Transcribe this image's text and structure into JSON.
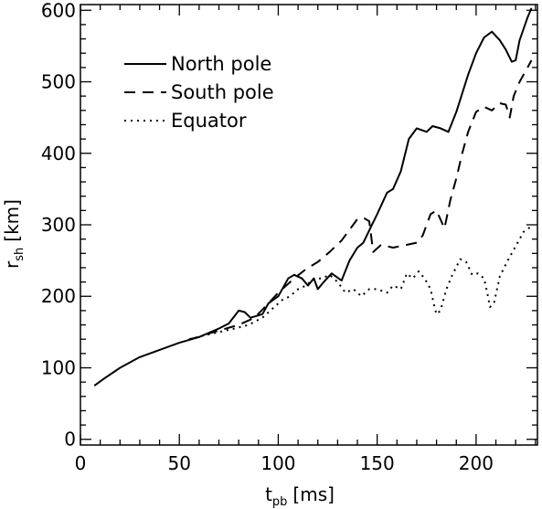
{
  "chart_data": {
    "type": "line",
    "xlabel": {
      "main": "t",
      "sub": "pb",
      "unit": "[ms]"
    },
    "ylabel": {
      "main": "r",
      "sub": "sh",
      "unit": "[km]"
    },
    "xlim": [
      0,
      231
    ],
    "ylim": [
      -8,
      608
    ],
    "xticks": [
      0,
      50,
      100,
      150,
      200
    ],
    "yticks": [
      0,
      100,
      200,
      300,
      400,
      500,
      600
    ],
    "x_minor_step": 10,
    "y_minor_step": 20,
    "legend_position": "top-left",
    "series": [
      {
        "name": "North pole",
        "style": "solid",
        "color": "#000000",
        "points": [
          [
            7,
            75
          ],
          [
            12,
            85
          ],
          [
            20,
            100
          ],
          [
            30,
            115
          ],
          [
            40,
            125
          ],
          [
            50,
            135
          ],
          [
            60,
            143
          ],
          [
            70,
            155
          ],
          [
            75,
            162
          ],
          [
            80,
            180
          ],
          [
            83,
            178
          ],
          [
            86,
            170
          ],
          [
            92,
            175
          ],
          [
            95,
            190
          ],
          [
            100,
            200
          ],
          [
            105,
            225
          ],
          [
            108,
            230
          ],
          [
            112,
            225
          ],
          [
            115,
            215
          ],
          [
            118,
            225
          ],
          [
            120,
            210
          ],
          [
            123,
            220
          ],
          [
            127,
            232
          ],
          [
            132,
            222
          ],
          [
            136,
            250
          ],
          [
            140,
            268
          ],
          [
            143,
            275
          ],
          [
            147,
            298
          ],
          [
            150,
            315
          ],
          [
            155,
            345
          ],
          [
            158,
            350
          ],
          [
            162,
            375
          ],
          [
            166,
            420
          ],
          [
            170,
            435
          ],
          [
            175,
            430
          ],
          [
            178,
            438
          ],
          [
            182,
            435
          ],
          [
            186,
            430
          ],
          [
            190,
            458
          ],
          [
            196,
            510
          ],
          [
            200,
            540
          ],
          [
            204,
            562
          ],
          [
            208,
            570
          ],
          [
            212,
            558
          ],
          [
            215,
            545
          ],
          [
            218,
            528
          ],
          [
            220,
            530
          ],
          [
            222,
            558
          ],
          [
            226,
            590
          ],
          [
            228,
            603
          ]
        ]
      },
      {
        "name": "South pole",
        "style": "dashed",
        "color": "#000000",
        "points": [
          [
            55,
            140
          ],
          [
            60,
            143
          ],
          [
            65,
            148
          ],
          [
            70,
            152
          ],
          [
            80,
            160
          ],
          [
            88,
            170
          ],
          [
            95,
            190
          ],
          [
            100,
            205
          ],
          [
            108,
            225
          ],
          [
            114,
            238
          ],
          [
            120,
            248
          ],
          [
            126,
            262
          ],
          [
            132,
            278
          ],
          [
            136,
            293
          ],
          [
            140,
            308
          ],
          [
            143,
            310
          ],
          [
            146,
            305
          ],
          [
            148,
            262
          ],
          [
            152,
            272
          ],
          [
            158,
            268
          ],
          [
            165,
            272
          ],
          [
            170,
            275
          ],
          [
            173,
            285
          ],
          [
            177,
            315
          ],
          [
            180,
            320
          ],
          [
            184,
            295
          ],
          [
            187,
            335
          ],
          [
            190,
            365
          ],
          [
            193,
            400
          ],
          [
            196,
            430
          ],
          [
            200,
            458
          ],
          [
            204,
            465
          ],
          [
            208,
            460
          ],
          [
            212,
            470
          ],
          [
            215,
            468
          ],
          [
            217,
            450
          ],
          [
            219,
            480
          ],
          [
            222,
            500
          ],
          [
            226,
            520
          ],
          [
            228,
            530
          ]
        ]
      },
      {
        "name": "Equator",
        "style": "dotted",
        "color": "#000000",
        "points": [
          [
            55,
            140
          ],
          [
            62,
            145
          ],
          [
            70,
            150
          ],
          [
            78,
            155
          ],
          [
            85,
            160
          ],
          [
            92,
            170
          ],
          [
            98,
            185
          ],
          [
            102,
            195
          ],
          [
            106,
            200
          ],
          [
            110,
            210
          ],
          [
            114,
            215
          ],
          [
            118,
            225
          ],
          [
            122,
            225
          ],
          [
            126,
            230
          ],
          [
            130,
            220
          ],
          [
            134,
            205
          ],
          [
            138,
            210
          ],
          [
            142,
            200
          ],
          [
            146,
            210
          ],
          [
            150,
            210
          ],
          [
            155,
            205
          ],
          [
            158,
            215
          ],
          [
            162,
            210
          ],
          [
            165,
            232
          ],
          [
            168,
            225
          ],
          [
            171,
            235
          ],
          [
            174,
            225
          ],
          [
            177,
            210
          ],
          [
            179,
            185
          ],
          [
            180,
            175
          ],
          [
            182,
            180
          ],
          [
            185,
            210
          ],
          [
            188,
            230
          ],
          [
            192,
            252
          ],
          [
            195,
            248
          ],
          [
            198,
            230
          ],
          [
            201,
            232
          ],
          [
            204,
            225
          ],
          [
            206,
            200
          ],
          [
            207,
            185
          ],
          [
            209,
            190
          ],
          [
            212,
            228
          ],
          [
            216,
            250
          ],
          [
            220,
            270
          ],
          [
            224,
            290
          ],
          [
            228,
            298
          ]
        ]
      }
    ]
  }
}
